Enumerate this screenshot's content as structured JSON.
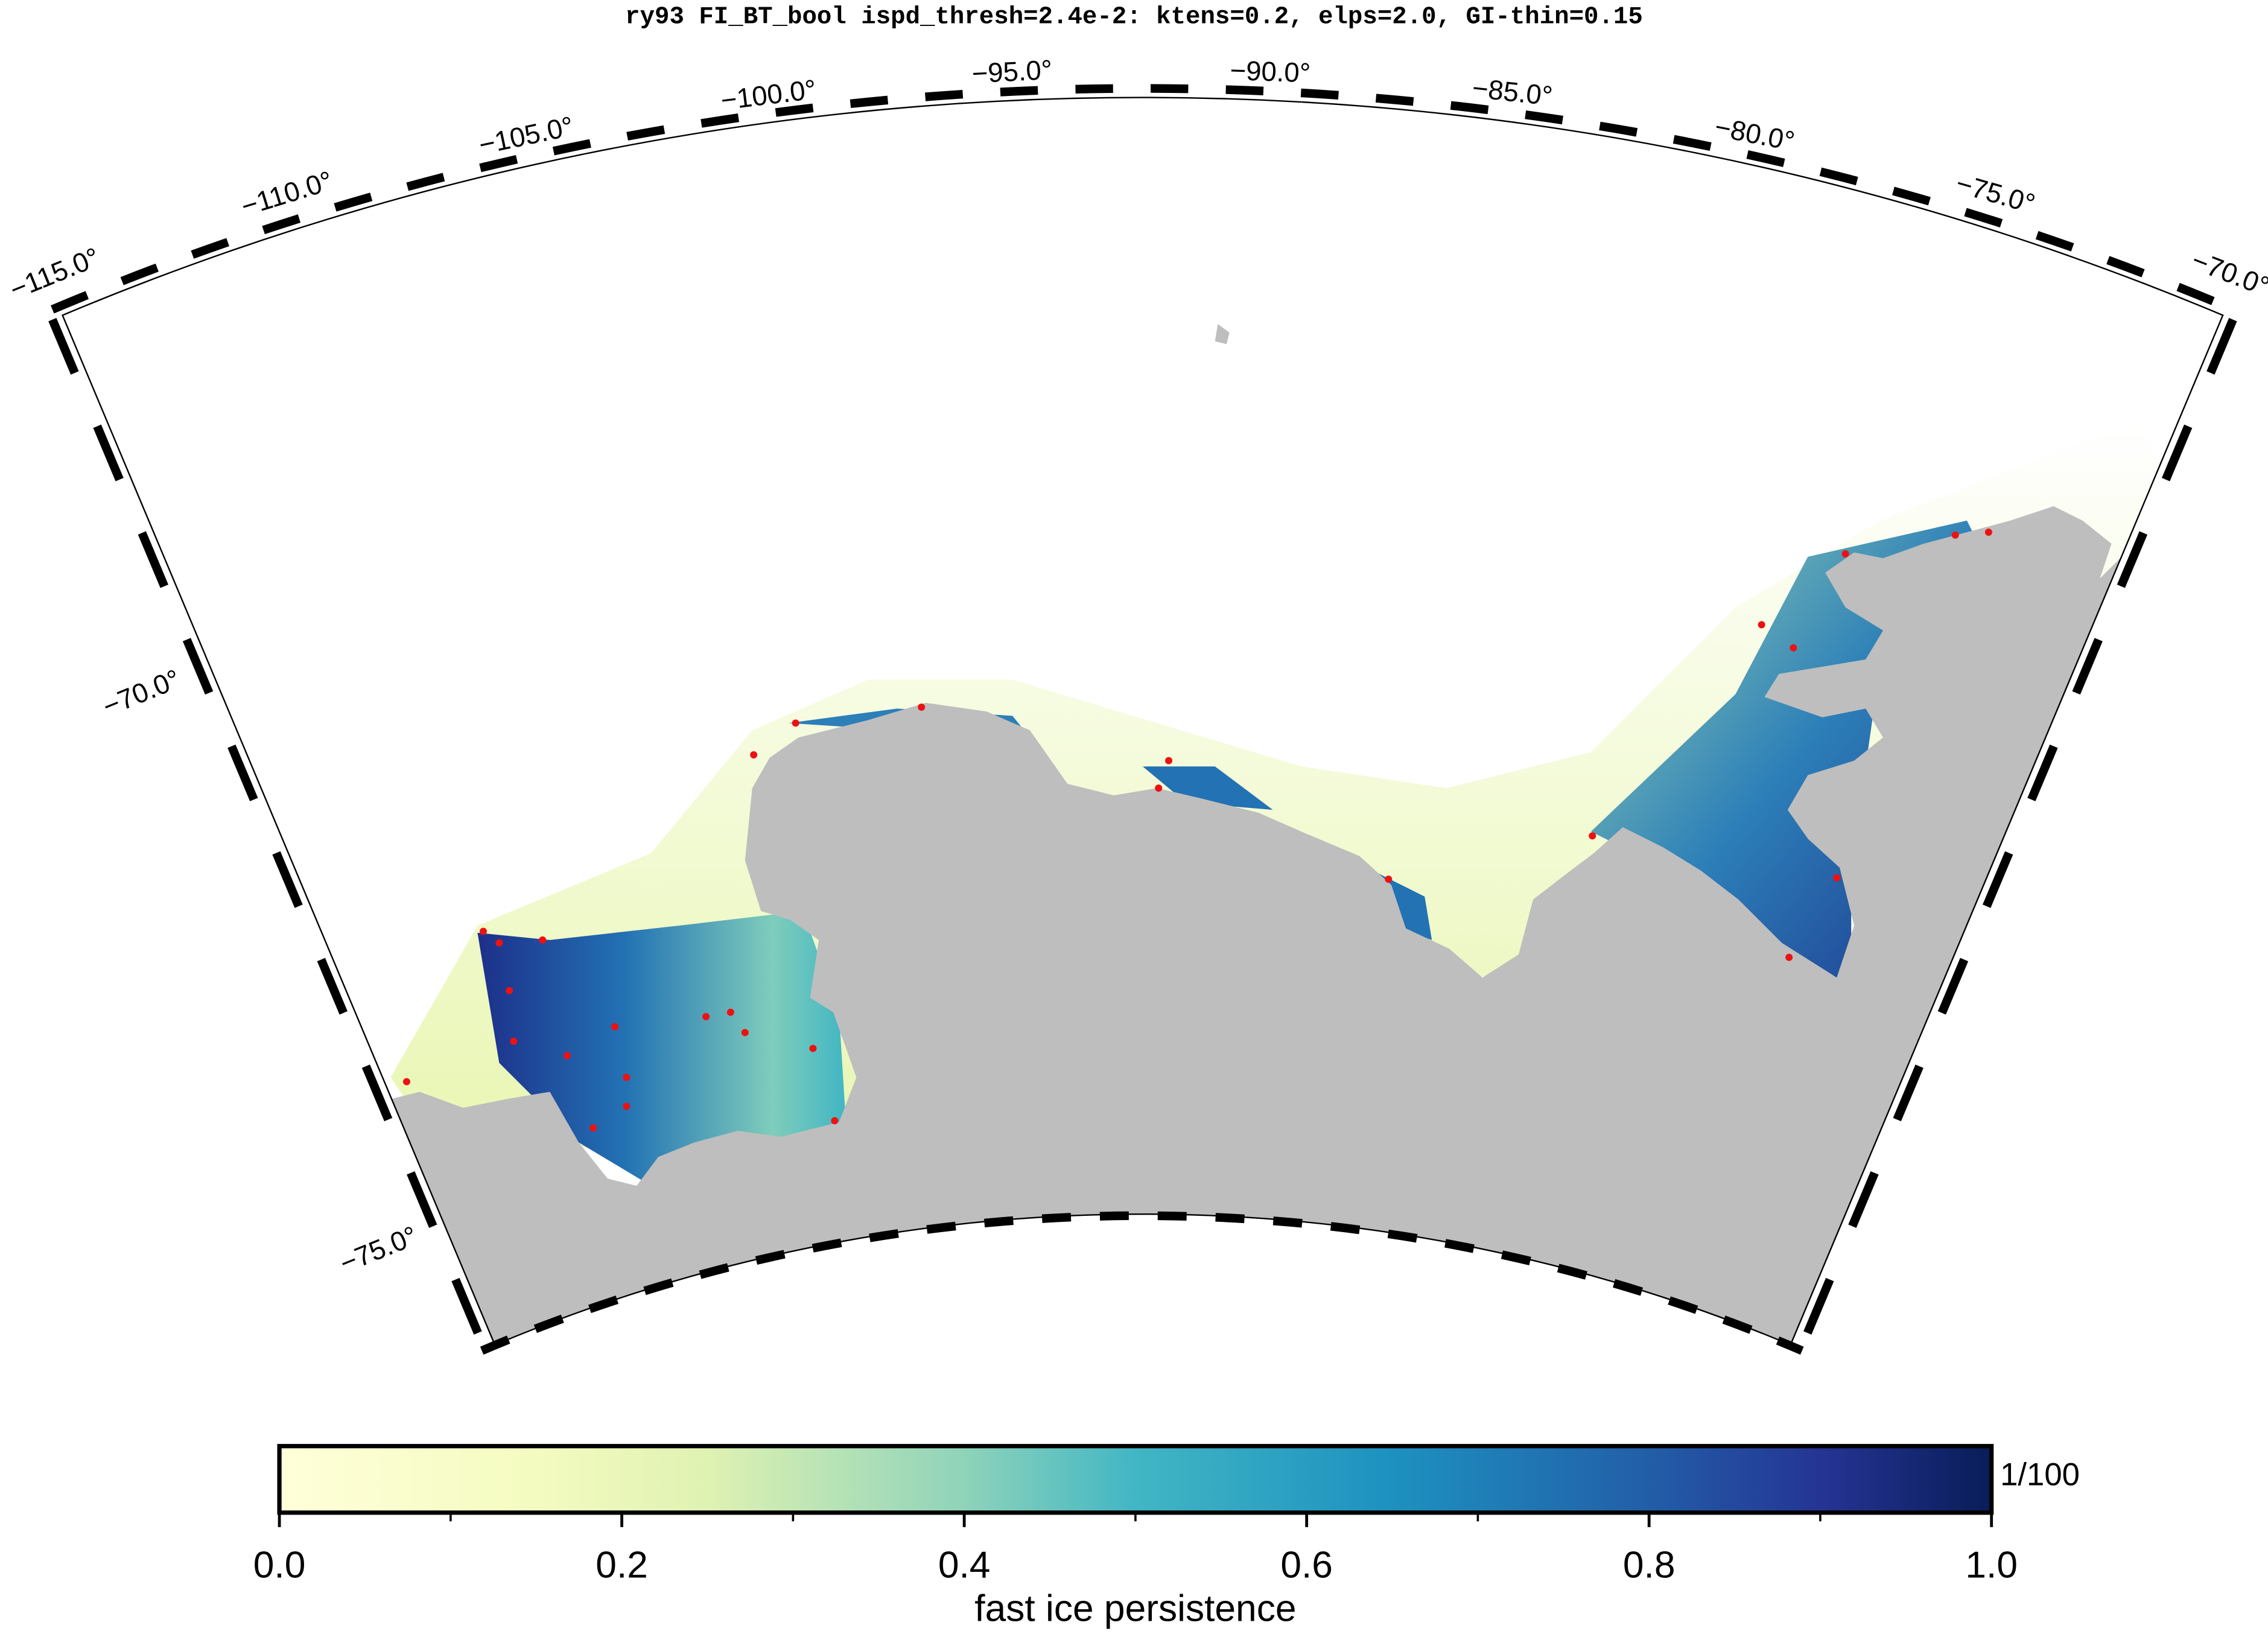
{
  "header": {
    "title": "ry93 FI_BT_bool ispd_thresh=2.4e-2: ktens=0.2, elps=2.0, GI-thin=0.15"
  },
  "map": {
    "lon_labels": [
      "−115.0°",
      "−110.0°",
      "−105.0°",
      "−100.0°",
      "−95.0°",
      "−90.0°",
      "−85.0°",
      "−80.0°",
      "−75.0°",
      "−70.0°"
    ],
    "lat_labels": [
      "−70.0°",
      "−75.0°"
    ]
  },
  "colorbar": {
    "label": "fast ice persistence",
    "unit": "1/100",
    "range": [
      0,
      1
    ],
    "ticks": [
      {
        "value": 0,
        "label": "0.0"
      },
      {
        "value": 0.2,
        "label": "0.2"
      },
      {
        "value": 0.4,
        "label": "0.4"
      },
      {
        "value": 0.6,
        "label": "0.6"
      },
      {
        "value": 0.8,
        "label": "0.8"
      },
      {
        "value": 1,
        "label": "1.0"
      }
    ]
  }
}
